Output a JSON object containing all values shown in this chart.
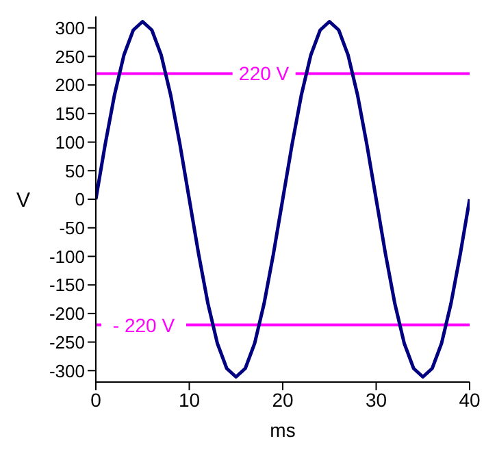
{
  "chart_data": {
    "type": "line",
    "xlabel": "ms",
    "ylabel": "V",
    "x": [
      0,
      1,
      2,
      3,
      4,
      5,
      6,
      7,
      8,
      9,
      10,
      11,
      12,
      13,
      14,
      15,
      16,
      17,
      18,
      19,
      20,
      21,
      22,
      23,
      24,
      25,
      26,
      27,
      28,
      29,
      30,
      31,
      32,
      33,
      34,
      35,
      36,
      37,
      38,
      39,
      40
    ],
    "series": [
      {
        "color": "#000080",
        "values": [
          0,
          96,
          183,
          252,
          296,
          311,
          296,
          252,
          183,
          96,
          0,
          -96,
          -183,
          -252,
          -296,
          -311,
          -296,
          -252,
          -183,
          -96,
          0,
          96,
          183,
          252,
          296,
          311,
          296,
          252,
          183,
          96,
          0,
          -96,
          -183,
          -252,
          -296,
          -311,
          -296,
          -252,
          -183,
          -96,
          0
        ]
      }
    ],
    "xlim": [
      0,
      40
    ],
    "xticks": [
      0,
      10,
      20,
      30,
      40
    ],
    "ylim": [
      -320,
      320
    ],
    "yticks": [
      -300,
      -250,
      -200,
      -150,
      -100,
      -50,
      0,
      50,
      100,
      150,
      200,
      250,
      300
    ],
    "grid": false,
    "legend": false,
    "marker": "none",
    "line_style": "solid",
    "ref_lines": [
      {
        "axis": "y",
        "value": 220,
        "label": "220 V",
        "color": "#ff00ff"
      },
      {
        "axis": "y",
        "value": -220,
        "label": "- 220 V",
        "color": "#ff00ff"
      }
    ]
  }
}
